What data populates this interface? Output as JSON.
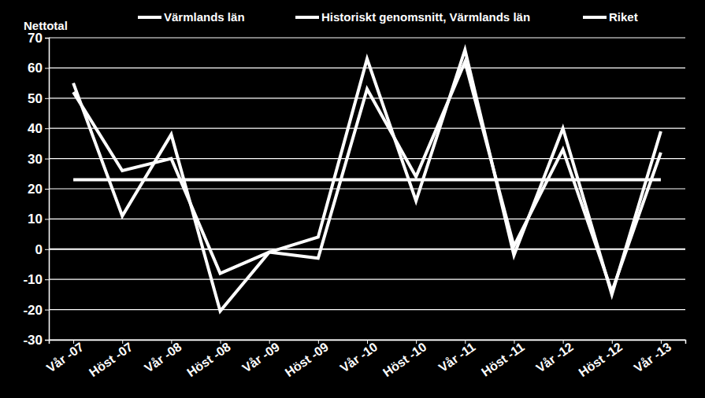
{
  "chart_data": {
    "type": "line",
    "y_label": "Nettotal",
    "categories": [
      "Vår -07",
      "Höst -07",
      "Vår -08",
      "Höst -08",
      "Vår -09",
      "Höst -09",
      "Vår -10",
      "Höst -10",
      "Vår -11",
      "Höst -11",
      "Vår -12",
      "Höst -12",
      "Vår -13"
    ],
    "series": [
      {
        "name": "Värmlands län",
        "color": "#ffffff",
        "values": [
          55,
          11,
          38,
          -20.5,
          -1,
          4,
          63,
          16,
          66,
          -2,
          40,
          -15,
          39
        ]
      },
      {
        "name": "Historiskt genomsnitt, Värmlands län",
        "color": "#ffffff",
        "values": [
          23,
          23,
          23,
          23,
          23,
          23,
          23,
          23,
          23,
          23,
          23,
          23,
          23
        ]
      },
      {
        "name": "Riket",
        "color": "#ffffff",
        "values": [
          52,
          26,
          30,
          -8,
          -1,
          -3,
          53,
          24,
          62,
          1,
          33,
          -14,
          32
        ]
      }
    ],
    "ylim": [
      -30,
      70
    ],
    "yticks": [
      -30,
      -20,
      -10,
      0,
      10,
      20,
      30,
      40,
      50,
      60,
      70
    ],
    "grid": true,
    "legend": "top"
  }
}
